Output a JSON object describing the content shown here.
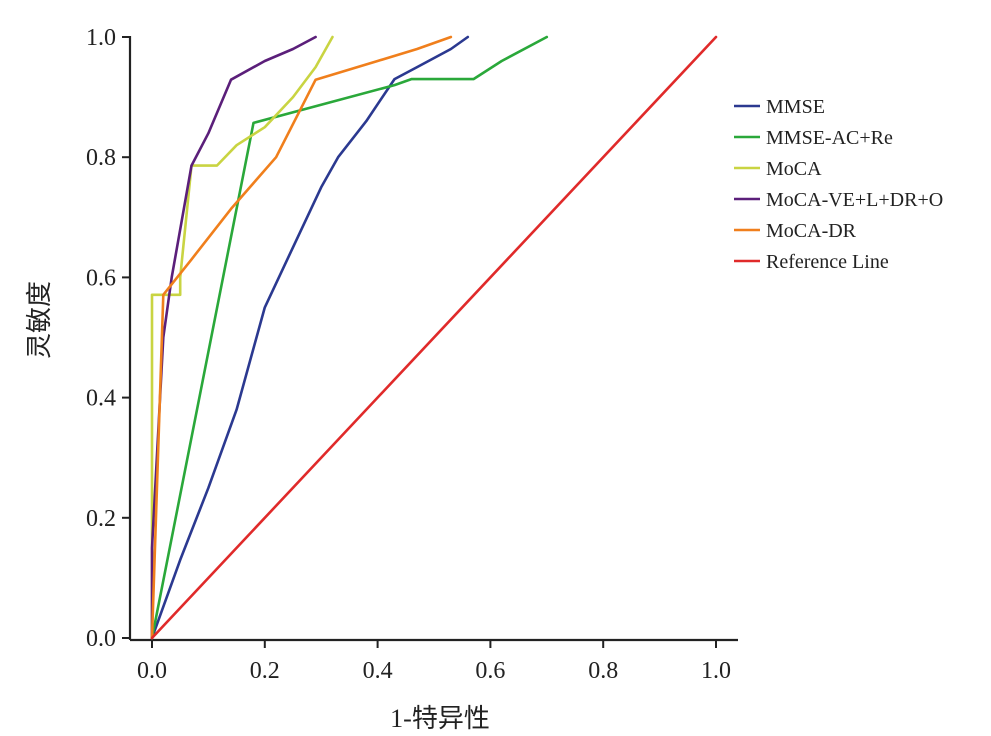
{
  "chart_data": {
    "type": "line",
    "title": "",
    "xlabel": "1-特异性",
    "ylabel": "灵敏度",
    "xlim": [
      0.0,
      1.0
    ],
    "ylim": [
      0.0,
      1.0
    ],
    "xticks": [
      "0.0",
      "0.2",
      "0.4",
      "0.6",
      "0.8",
      "1.0"
    ],
    "yticks": [
      "0.0",
      "0.2",
      "0.4",
      "0.6",
      "0.8",
      "1.0"
    ],
    "grid": false,
    "legend_position": "right",
    "series": [
      {
        "name": "MMSE",
        "color": "#2b3990",
        "points": [
          [
            0.0,
            0.0
          ],
          [
            0.05,
            0.13
          ],
          [
            0.1,
            0.25
          ],
          [
            0.15,
            0.38
          ],
          [
            0.2,
            0.55
          ],
          [
            0.25,
            0.65
          ],
          [
            0.3,
            0.75
          ],
          [
            0.33,
            0.8
          ],
          [
            0.38,
            0.86
          ],
          [
            0.43,
            0.93
          ],
          [
            0.47,
            0.95
          ],
          [
            0.53,
            0.98
          ],
          [
            0.56,
            1.0
          ]
        ]
      },
      {
        "name": "MMSE-AC+Re",
        "color": "#2aa83a",
        "points": [
          [
            0.0,
            0.0
          ],
          [
            0.18,
            0.857
          ],
          [
            0.43,
            0.92
          ],
          [
            0.46,
            0.93
          ],
          [
            0.57,
            0.93
          ],
          [
            0.62,
            0.96
          ],
          [
            0.7,
            1.0
          ]
        ]
      },
      {
        "name": "MoCA",
        "color": "#c9d442",
        "points": [
          [
            0.0,
            0.0
          ],
          [
            0.0,
            0.571
          ],
          [
            0.05,
            0.571
          ],
          [
            0.05,
            0.6
          ],
          [
            0.07,
            0.786
          ],
          [
            0.115,
            0.786
          ],
          [
            0.15,
            0.82
          ],
          [
            0.2,
            0.85
          ],
          [
            0.25,
            0.9
          ],
          [
            0.29,
            0.95
          ],
          [
            0.32,
            1.0
          ]
        ]
      },
      {
        "name": "MoCA-VE+L+DR+O",
        "color": "#5b1f7a",
        "points": [
          [
            0.0,
            0.0
          ],
          [
            0.0,
            0.15
          ],
          [
            0.02,
            0.5
          ],
          [
            0.035,
            0.6
          ],
          [
            0.07,
            0.786
          ],
          [
            0.1,
            0.84
          ],
          [
            0.14,
            0.929
          ],
          [
            0.2,
            0.96
          ],
          [
            0.25,
            0.98
          ],
          [
            0.29,
            1.0
          ]
        ]
      },
      {
        "name": "MoCA-DR",
        "color": "#f07f1c",
        "points": [
          [
            0.0,
            0.0
          ],
          [
            0.02,
            0.571
          ],
          [
            0.07,
            0.63
          ],
          [
            0.14,
            0.714
          ],
          [
            0.22,
            0.8
          ],
          [
            0.29,
            0.929
          ],
          [
            0.4,
            0.96
          ],
          [
            0.47,
            0.98
          ],
          [
            0.53,
            1.0
          ]
        ]
      },
      {
        "name": "Reference Line",
        "color": "#e02a2a",
        "points": [
          [
            0.0,
            0.0
          ],
          [
            1.0,
            1.0
          ]
        ]
      }
    ]
  }
}
